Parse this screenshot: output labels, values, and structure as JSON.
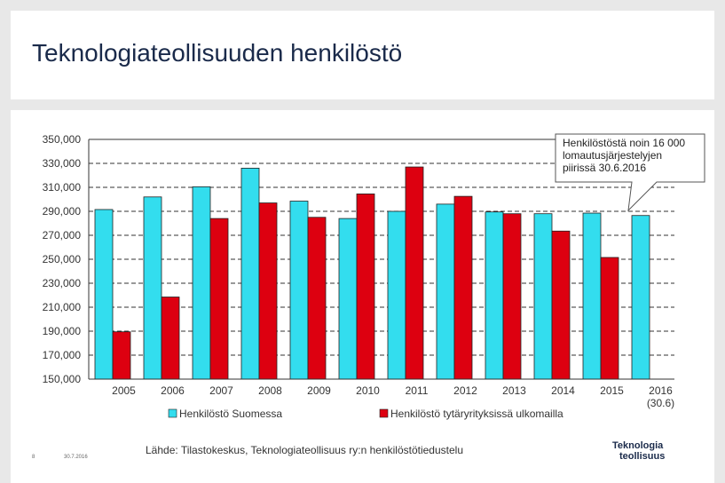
{
  "slide": {
    "title": "Teknologiateollisuuden henkilöstö",
    "source": "Lähde: Tilastokeskus, Teknologiateollisuus ry:n henkilöstötiedustelu",
    "page_number": "8",
    "date": "30.7.2016",
    "logo_line1": "Teknologia",
    "logo_line2": "teollisuus"
  },
  "chart_data": {
    "type": "bar",
    "categories": [
      "2005",
      "2006",
      "2007",
      "2008",
      "2009",
      "2010",
      "2011",
      "2012",
      "2013",
      "2014",
      "2015",
      "2016"
    ],
    "category_sublabels": [
      "",
      "",
      "",
      "",
      "",
      "",
      "",
      "",
      "",
      "",
      "",
      "(30.6)"
    ],
    "series": [
      {
        "name": "Henkilöstö Suomessa",
        "color": "#33ddee",
        "values": [
          291500,
          302000,
          310500,
          326000,
          298500,
          284000,
          290000,
          296000,
          289500,
          288000,
          288500,
          286500
        ]
      },
      {
        "name": "Henkilöstö tytäryrityksissä ulkomailla",
        "color": "#dd0010",
        "values": [
          189500,
          218500,
          284000,
          297000,
          285000,
          304500,
          327000,
          302500,
          288000,
          273500,
          251500,
          null
        ]
      }
    ],
    "yticks": [
      "350,000",
      "330,000",
      "310,000",
      "290,000",
      "270,000",
      "250,000",
      "230,000",
      "210,000",
      "190,000",
      "170,000",
      "150,000"
    ],
    "ylim": [
      150000,
      350000
    ],
    "grid": true,
    "legend": "bottom",
    "annotation": {
      "lines": [
        "Henkilöstöstä noin 16 000",
        "lomautusjärjestelyjen",
        "piirissä  30.6.2016"
      ],
      "points_to": "2016"
    }
  }
}
